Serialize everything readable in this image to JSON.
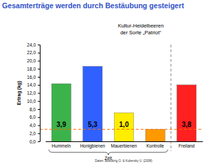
{
  "chart_data": {
    "type": "bar",
    "title": "Gesamterträge werden durch Bestäubung gesteigert",
    "subtitle": [
      "Kultur-Heidelbeeren",
      "der Sorte „Patriot“"
    ],
    "y_label": "Ertrag (kg)",
    "categories": [
      "Hummeln",
      "Honigbienen",
      "Mauerbienen",
      "Kontrolle",
      "Freiland"
    ],
    "values": [
      14.3,
      18.6,
      7.1,
      3.0,
      14.0
    ],
    "colors": [
      "#3cb34a",
      "#3060ff",
      "#ffee00",
      "#ff9900",
      "#ff2020"
    ],
    "ylim": [
      0,
      24
    ],
    "yticks": [
      {
        "value": 0,
        "label": "0,0"
      },
      {
        "value": 2,
        "label": "2,0"
      },
      {
        "value": 4,
        "label": "4,0"
      },
      {
        "value": 6,
        "label": "6,0"
      },
      {
        "value": 8,
        "label": "8,0"
      },
      {
        "value": 10,
        "label": "10,0"
      },
      {
        "value": 12,
        "label": "12,0"
      },
      {
        "value": 14,
        "label": "14,0"
      },
      {
        "value": 16,
        "label": "16,0"
      },
      {
        "value": 18,
        "label": "18,0"
      },
      {
        "value": 20,
        "label": "20,0"
      },
      {
        "value": 22,
        "label": "22,0"
      },
      {
        "value": 24,
        "label": "24,0"
      }
    ],
    "grid": false,
    "annotations": [
      {
        "category": "Hummeln",
        "text": "3,9"
      },
      {
        "category": "Honigbienen",
        "text": "5,3"
      },
      {
        "category": "Mauerbienen",
        "text": "1,0"
      },
      {
        "category": "Freiland",
        "text": "3,8"
      }
    ],
    "reference_line": {
      "value": 3.0,
      "line_style": "dashed"
    },
    "groups": [
      {
        "label": "Zelt",
        "categories": [
          "Hummeln",
          "Honigbienen",
          "Mauerbienen",
          "Kontrolle"
        ]
      }
    ],
    "source": "Daten: Boecking O. & Kubersky U. (2008)"
  }
}
